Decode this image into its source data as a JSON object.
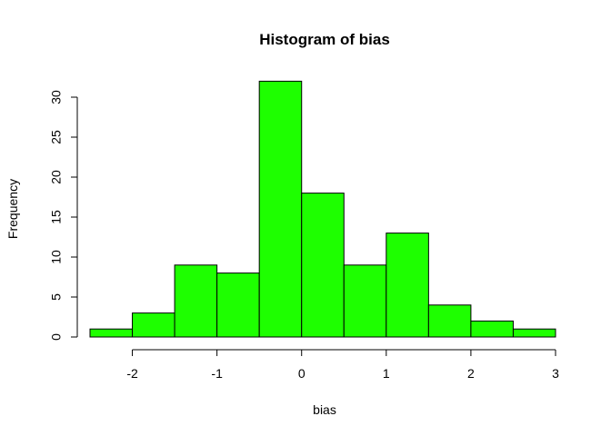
{
  "chart_data": {
    "type": "bar",
    "title": "Histogram of bias",
    "xlabel": "bias",
    "ylabel": "Frequency",
    "bins": [
      [
        -2.5,
        -2.0
      ],
      [
        -2.0,
        -1.5
      ],
      [
        -1.5,
        -1.0
      ],
      [
        -1.0,
        -0.5
      ],
      [
        -0.5,
        0.0
      ],
      [
        0.0,
        0.5
      ],
      [
        0.5,
        1.0
      ],
      [
        1.0,
        1.5
      ],
      [
        1.5,
        2.0
      ],
      [
        2.0,
        2.5
      ],
      [
        2.5,
        3.0
      ]
    ],
    "values": [
      1,
      3,
      9,
      8,
      32,
      18,
      9,
      13,
      4,
      2,
      1
    ],
    "xlim": [
      -2.5,
      3.0
    ],
    "ylim": [
      0,
      32
    ],
    "x_ticks": [
      -2,
      -1,
      0,
      1,
      2,
      3
    ],
    "x_tick_labels": [
      "-2",
      "-1",
      "0",
      "1",
      "2",
      "3"
    ],
    "y_ticks": [
      0,
      5,
      10,
      15,
      20,
      25,
      30
    ],
    "y_tick_labels": [
      "0",
      "5",
      "10",
      "15",
      "20",
      "25",
      "30"
    ],
    "bar_color": "#1eff00",
    "grid": false
  }
}
